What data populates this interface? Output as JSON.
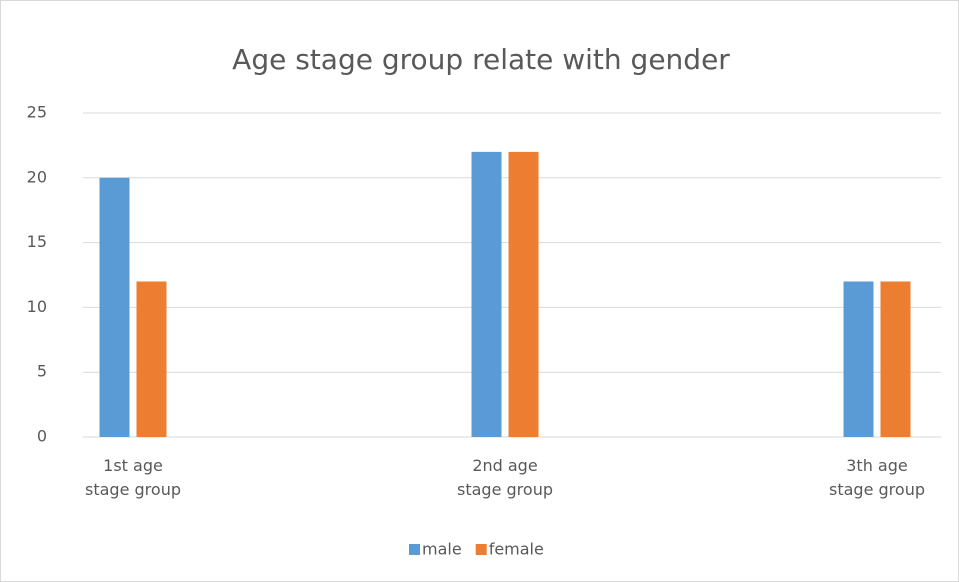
{
  "chart_data": {
    "type": "bar",
    "title": "Age stage group relate with gender",
    "categories": [
      "1st age\nstage group",
      "2nd age\nstage group",
      "3th age\nstage group"
    ],
    "series": [
      {
        "name": "male",
        "color": "#5b9bd5",
        "values": [
          20,
          22,
          12
        ]
      },
      {
        "name": "female",
        "color": "#ed7d31",
        "values": [
          12,
          22,
          12
        ]
      }
    ],
    "ylim": [
      0,
      25
    ],
    "yticks": [
      0,
      5,
      10,
      15,
      20,
      25
    ],
    "grid": true,
    "legend": "bottom"
  }
}
